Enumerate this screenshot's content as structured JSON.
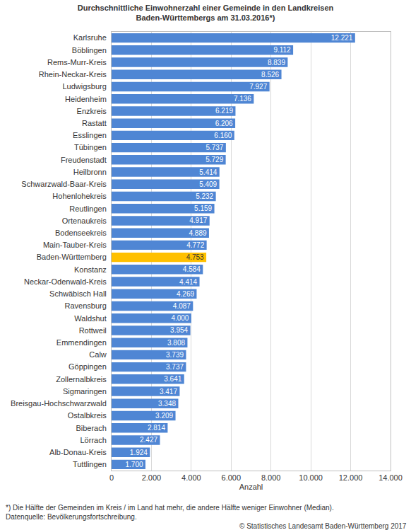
{
  "chart_data": {
    "type": "bar",
    "orientation": "horizontal",
    "title": "Durchschnittliche Einwohnerzahl einer Gemeinde in den Landkreisen\nBaden-Württembergs am 31.03.2016*)",
    "x_label": "Anzahl",
    "categories": [
      "Karlsruhe",
      "Böblingen",
      "Rems-Murr-Kreis",
      "Rhein-Neckar-Kreis",
      "Ludwigsburg",
      "Heidenheim",
      "Enzkreis",
      "Rastatt",
      "Esslingen",
      "Tübingen",
      "Freudenstadt",
      "Heilbronn",
      "Schwarzwald-Baar-Kreis",
      "Hohenlohekreis",
      "Reutlingen",
      "Ortenaukreis",
      "Bodenseekreis",
      "Main-Tauber-Kreis",
      "Baden-Württemberg",
      "Konstanz",
      "Neckar-Odenwald-Kreis",
      "Schwäbisch Hall",
      "Ravensburg",
      "Waldshut",
      "Rottweil",
      "Emmendingen",
      "Calw",
      "Göppingen",
      "Zollernalbkreis",
      "Sigmaringen",
      "Breisgau-Hochschwarzwald",
      "Ostalbkreis",
      "Biberach",
      "Lörrach",
      "Alb-Donau-Kreis",
      "Tuttlingen"
    ],
    "values": [
      12221,
      9112,
      8839,
      8526,
      7927,
      7136,
      6219,
      6206,
      6160,
      5737,
      5729,
      5414,
      5409,
      5232,
      5159,
      4917,
      4889,
      4772,
      4753,
      4584,
      4414,
      4269,
      4087,
      4000,
      3954,
      3808,
      3739,
      3737,
      3641,
      3417,
      3348,
      3209,
      2814,
      2427,
      1924,
      1700
    ],
    "value_labels": [
      "12.221",
      "9.112",
      "8.839",
      "8.526",
      "7.927",
      "7.136",
      "6.219",
      "6.206",
      "6.160",
      "5.737",
      "5.729",
      "5.414",
      "5.409",
      "5.232",
      "5.159",
      "4.917",
      "4.889",
      "4.772",
      "4.753",
      "4.584",
      "4.414",
      "4.269",
      "4.087",
      "4.000",
      "3.954",
      "3.808",
      "3.739",
      "3.737",
      "3.641",
      "3.417",
      "3.348",
      "3.209",
      "2.814",
      "2.427",
      "1.924",
      "1.700"
    ],
    "colors": [
      "#4f86d4",
      "#4f86d4",
      "#4f86d4",
      "#4f86d4",
      "#4f86d4",
      "#4f86d4",
      "#4f86d4",
      "#4f86d4",
      "#4f86d4",
      "#4f86d4",
      "#4f86d4",
      "#4f86d4",
      "#4f86d4",
      "#4f86d4",
      "#4f86d4",
      "#4f86d4",
      "#4f86d4",
      "#4f86d4",
      "#ffc000",
      "#4f86d4",
      "#4f86d4",
      "#4f86d4",
      "#4f86d4",
      "#4f86d4",
      "#4f86d4",
      "#4f86d4",
      "#4f86d4",
      "#4f86d4",
      "#4f86d4",
      "#4f86d4",
      "#4f86d4",
      "#4f86d4",
      "#4f86d4",
      "#4f86d4",
      "#4f86d4",
      "#4f86d4"
    ],
    "xlim": [
      0,
      14000
    ],
    "xticks": [
      0,
      {
        "value": 2000,
        "label": "2.000"
      },
      {
        "value": 4000,
        "label": "4.000"
      },
      {
        "value": 6000,
        "label": "6.000"
      },
      {
        "value": 8000,
        "label": "8.000"
      },
      {
        "value": 10000,
        "label": "10.000"
      },
      {
        "value": 12000,
        "label": "12.000"
      },
      {
        "value": 14000,
        "label": "14.000"
      }
    ],
    "grid": true,
    "data_labels": true,
    "annotations": [
      "*) Die Hälfte der Gemeinden im Kreis / im Land hat mehr, die andere Hälfte weniger Einwohner (Median).",
      "Datenquelle: Bevölkerungsfortschreibung.",
      "© Statistisches Landesamt Baden-Württemberg 2017"
    ]
  }
}
